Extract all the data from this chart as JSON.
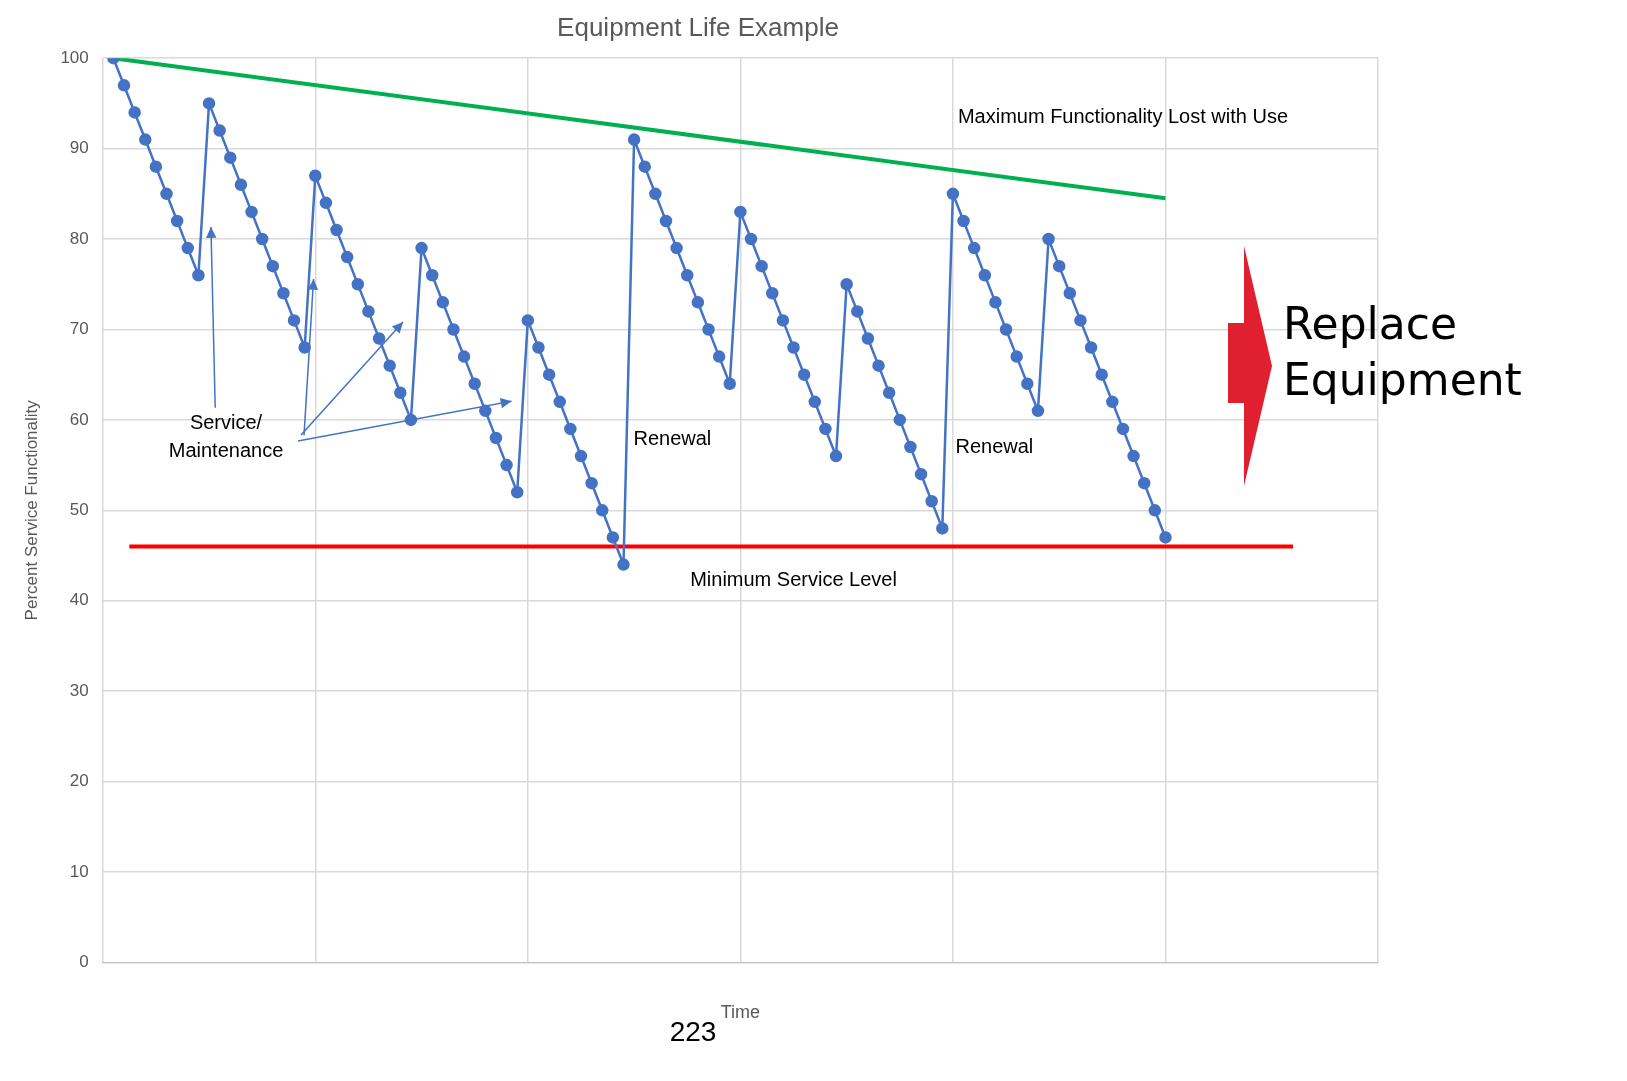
{
  "chart_data": {
    "type": "line",
    "title": "Equipment Life Example",
    "xlabel": "Time",
    "ylabel": "Percent Service Functionality",
    "categories": [
      null,
      null,
      null,
      null,
      null,
      null,
      null,
      null,
      null,
      null,
      null,
      null,
      null,
      null,
      null,
      null,
      null,
      null,
      null,
      null,
      null,
      null,
      null,
      null,
      null,
      null,
      null,
      null,
      null,
      null,
      null,
      null,
      null,
      null,
      null,
      null,
      null,
      null,
      null,
      null,
      null,
      null,
      null,
      null,
      null,
      null,
      null,
      null,
      null,
      null,
      null,
      null,
      null,
      null,
      null,
      null,
      null,
      null,
      null,
      null,
      null,
      null,
      null,
      null,
      null,
      null,
      null,
      null,
      null,
      null,
      null,
      null,
      null,
      null,
      null,
      null,
      null,
      null,
      null,
      null,
      null,
      null,
      null,
      null,
      null,
      null,
      null,
      null,
      null,
      null,
      null,
      null,
      null,
      null,
      null,
      null,
      null,
      null,
      null,
      null
    ],
    "ylim": [
      0,
      100
    ],
    "yticks": [
      0,
      10,
      20,
      30,
      40,
      50,
      60,
      70,
      80,
      90,
      100
    ],
    "grid": true,
    "tick_labels": "y",
    "legend": false,
    "marker": "circle",
    "line_style": "solid",
    "series": [
      {
        "color": "#4472c4",
        "values": [
          100,
          97,
          94,
          91,
          88,
          85,
          82,
          79,
          76,
          95,
          92,
          89,
          86,
          83,
          80,
          77,
          74,
          71,
          68,
          87,
          84,
          81,
          78,
          75,
          72,
          69,
          66,
          63,
          60,
          79,
          76,
          73,
          70,
          67,
          64,
          61,
          58,
          55,
          52,
          71,
          68,
          65,
          62,
          59,
          56,
          53,
          50,
          47,
          44,
          91,
          88,
          85,
          82,
          79,
          76,
          73,
          70,
          67,
          64,
          83,
          80,
          77,
          74,
          71,
          68,
          65,
          62,
          59,
          56,
          75,
          72,
          69,
          66,
          63,
          60,
          57,
          54,
          51,
          48,
          85,
          82,
          79,
          76,
          73,
          70,
          67,
          64,
          61,
          80,
          77,
          74,
          71,
          68,
          65,
          62,
          59,
          56,
          53,
          50,
          47
        ]
      },
      {
        "color": "#00b050",
        "marker": "none",
        "values": [
          100,
          null,
          null,
          null,
          null,
          null,
          null,
          null,
          null,
          null,
          null,
          null,
          null,
          null,
          null,
          null,
          null,
          null,
          null,
          null,
          null,
          null,
          null,
          null,
          null,
          null,
          null,
          null,
          null,
          null,
          null,
          null,
          null,
          null,
          null,
          null,
          null,
          null,
          null,
          null,
          null,
          null,
          null,
          null,
          null,
          null,
          null,
          null,
          null,
          null,
          null,
          null,
          null,
          null,
          null,
          null,
          null,
          null,
          null,
          null,
          null,
          null,
          null,
          null,
          null,
          null,
          null,
          null,
          null,
          null,
          null,
          null,
          null,
          null,
          null,
          null,
          null,
          null,
          null,
          null,
          null,
          null,
          null,
          null,
          null,
          null,
          null,
          null,
          null,
          null,
          null,
          null,
          null,
          null,
          null,
          null,
          null,
          null,
          null,
          84.5
        ]
      }
    ],
    "ref_lines": [
      {
        "axis": "y",
        "value": 46,
        "label": "Minimum Service Level",
        "color": "#ff0000"
      }
    ],
    "annotations": [
      "Maximum Functionality Lost with Use",
      "Service/\nMaintenance",
      "Renewal",
      "Renewal",
      "Replace Equipment",
      "223"
    ]
  }
}
